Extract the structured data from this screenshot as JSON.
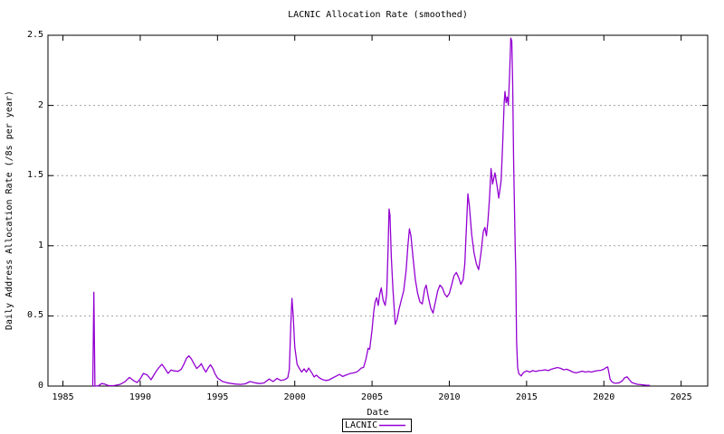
{
  "title": "LACNIC Allocation Rate (smoothed)",
  "axes": {
    "x_label": "Date",
    "y_label": "Daily Address Allocation Rate (/8s per year)",
    "x_tick_labels": [
      "1985",
      "1990",
      "1995",
      "2000",
      "2005",
      "2010",
      "2015",
      "2020",
      "2025"
    ],
    "y_tick_labels": [
      "0",
      "0.5",
      "1",
      "1.5",
      "2",
      "2.5"
    ]
  },
  "legend": {
    "label": "LACNIC"
  },
  "colors": {
    "line": "#9400d3",
    "grid": "#a0a0a0",
    "frame": "#000000",
    "background": "#ffffff"
  },
  "chart_data": {
    "type": "line",
    "title": "LACNIC Allocation Rate (smoothed)",
    "xlabel": "Date",
    "ylabel": "Daily Address Allocation Rate (/8s per year)",
    "xlim": [
      1984.03,
      2026.72
    ],
    "ylim": [
      0,
      2.5
    ],
    "x_ticks": [
      1985,
      1990,
      1995,
      2000,
      2005,
      2010,
      2015,
      2020,
      2025
    ],
    "y_ticks": [
      0,
      0.5,
      1,
      1.5,
      2,
      2.5
    ],
    "grid": "horizontal dashed lines at interior y ticks",
    "legend_position": "below x-axis label, centered, boxed",
    "series": [
      {
        "name": "LACNIC",
        "color": "#9400d3",
        "points": [
          [
            1986.93,
            0
          ],
          [
            1987.0,
            0.668
          ],
          [
            1987.07,
            0
          ],
          [
            1987.3,
            0.002
          ],
          [
            1987.5,
            0.018
          ],
          [
            1987.7,
            0.014
          ],
          [
            1987.95,
            0.003
          ],
          [
            1988.3,
            0.003
          ],
          [
            1988.7,
            0.012
          ],
          [
            1989.0,
            0.03
          ],
          [
            1989.3,
            0.062
          ],
          [
            1989.55,
            0.04
          ],
          [
            1989.8,
            0.025
          ],
          [
            1990.0,
            0.05
          ],
          [
            1990.2,
            0.09
          ],
          [
            1990.45,
            0.08
          ],
          [
            1990.7,
            0.045
          ],
          [
            1991.0,
            0.1
          ],
          [
            1991.2,
            0.13
          ],
          [
            1991.4,
            0.155
          ],
          [
            1991.6,
            0.125
          ],
          [
            1991.8,
            0.09
          ],
          [
            1992.0,
            0.115
          ],
          [
            1992.2,
            0.108
          ],
          [
            1992.45,
            0.105
          ],
          [
            1992.65,
            0.12
          ],
          [
            1992.8,
            0.15
          ],
          [
            1993.0,
            0.2
          ],
          [
            1993.15,
            0.215
          ],
          [
            1993.3,
            0.195
          ],
          [
            1993.5,
            0.155
          ],
          [
            1993.65,
            0.125
          ],
          [
            1993.85,
            0.145
          ],
          [
            1993.95,
            0.16
          ],
          [
            1994.1,
            0.125
          ],
          [
            1994.25,
            0.1
          ],
          [
            1994.4,
            0.13
          ],
          [
            1994.55,
            0.152
          ],
          [
            1994.7,
            0.125
          ],
          [
            1994.85,
            0.085
          ],
          [
            1995.0,
            0.058
          ],
          [
            1995.3,
            0.034
          ],
          [
            1995.6,
            0.024
          ],
          [
            1995.9,
            0.018
          ],
          [
            1996.2,
            0.014
          ],
          [
            1996.5,
            0.012
          ],
          [
            1996.8,
            0.016
          ],
          [
            1997.1,
            0.032
          ],
          [
            1997.4,
            0.024
          ],
          [
            1997.7,
            0.018
          ],
          [
            1998.0,
            0.022
          ],
          [
            1998.35,
            0.05
          ],
          [
            1998.6,
            0.032
          ],
          [
            1998.85,
            0.055
          ],
          [
            1999.1,
            0.04
          ],
          [
            1999.35,
            0.046
          ],
          [
            1999.55,
            0.06
          ],
          [
            1999.65,
            0.12
          ],
          [
            1999.75,
            0.45
          ],
          [
            1999.82,
            0.625
          ],
          [
            1999.9,
            0.5
          ],
          [
            2000.0,
            0.28
          ],
          [
            2000.15,
            0.155
          ],
          [
            2000.3,
            0.125
          ],
          [
            2000.45,
            0.1
          ],
          [
            2000.6,
            0.123
          ],
          [
            2000.75,
            0.1
          ],
          [
            2000.9,
            0.128
          ],
          [
            2001.1,
            0.095
          ],
          [
            2001.25,
            0.065
          ],
          [
            2001.4,
            0.078
          ],
          [
            2001.6,
            0.058
          ],
          [
            2001.8,
            0.046
          ],
          [
            2002.0,
            0.04
          ],
          [
            2002.2,
            0.043
          ],
          [
            2002.45,
            0.058
          ],
          [
            2002.7,
            0.072
          ],
          [
            2002.9,
            0.083
          ],
          [
            2003.1,
            0.068
          ],
          [
            2003.3,
            0.078
          ],
          [
            2003.55,
            0.088
          ],
          [
            2003.8,
            0.094
          ],
          [
            2004.0,
            0.1
          ],
          [
            2004.15,
            0.112
          ],
          [
            2004.3,
            0.128
          ],
          [
            2004.45,
            0.133
          ],
          [
            2004.6,
            0.19
          ],
          [
            2004.75,
            0.27
          ],
          [
            2004.85,
            0.262
          ],
          [
            2005.0,
            0.4
          ],
          [
            2005.1,
            0.52
          ],
          [
            2005.2,
            0.6
          ],
          [
            2005.3,
            0.63
          ],
          [
            2005.4,
            0.575
          ],
          [
            2005.5,
            0.655
          ],
          [
            2005.6,
            0.7
          ],
          [
            2005.72,
            0.61
          ],
          [
            2005.85,
            0.575
          ],
          [
            2005.95,
            0.66
          ],
          [
            2006.03,
            0.95
          ],
          [
            2006.1,
            1.262
          ],
          [
            2006.16,
            1.22
          ],
          [
            2006.25,
            0.92
          ],
          [
            2006.35,
            0.7
          ],
          [
            2006.5,
            0.44
          ],
          [
            2006.62,
            0.475
          ],
          [
            2006.75,
            0.55
          ],
          [
            2006.9,
            0.615
          ],
          [
            2007.05,
            0.68
          ],
          [
            2007.2,
            0.82
          ],
          [
            2007.32,
            1.0
          ],
          [
            2007.42,
            1.12
          ],
          [
            2007.52,
            1.07
          ],
          [
            2007.65,
            0.92
          ],
          [
            2007.8,
            0.76
          ],
          [
            2007.95,
            0.66
          ],
          [
            2008.1,
            0.6
          ],
          [
            2008.25,
            0.585
          ],
          [
            2008.4,
            0.69
          ],
          [
            2008.5,
            0.72
          ],
          [
            2008.65,
            0.63
          ],
          [
            2008.8,
            0.555
          ],
          [
            2008.95,
            0.52
          ],
          [
            2009.1,
            0.6
          ],
          [
            2009.25,
            0.68
          ],
          [
            2009.4,
            0.72
          ],
          [
            2009.55,
            0.7
          ],
          [
            2009.7,
            0.655
          ],
          [
            2009.85,
            0.635
          ],
          [
            2010.0,
            0.66
          ],
          [
            2010.15,
            0.72
          ],
          [
            2010.3,
            0.785
          ],
          [
            2010.45,
            0.81
          ],
          [
            2010.6,
            0.775
          ],
          [
            2010.75,
            0.725
          ],
          [
            2010.9,
            0.76
          ],
          [
            2011.0,
            0.87
          ],
          [
            2011.1,
            1.12
          ],
          [
            2011.2,
            1.37
          ],
          [
            2011.3,
            1.28
          ],
          [
            2011.45,
            1.08
          ],
          [
            2011.6,
            0.95
          ],
          [
            2011.75,
            0.87
          ],
          [
            2011.9,
            0.83
          ],
          [
            2012.05,
            0.95
          ],
          [
            2012.2,
            1.1
          ],
          [
            2012.3,
            1.13
          ],
          [
            2012.4,
            1.07
          ],
          [
            2012.5,
            1.18
          ],
          [
            2012.6,
            1.34
          ],
          [
            2012.7,
            1.55
          ],
          [
            2012.8,
            1.44
          ],
          [
            2012.95,
            1.52
          ],
          [
            2013.1,
            1.42
          ],
          [
            2013.2,
            1.34
          ],
          [
            2013.35,
            1.46
          ],
          [
            2013.45,
            1.72
          ],
          [
            2013.55,
            2.02
          ],
          [
            2013.6,
            2.1
          ],
          [
            2013.68,
            2.02
          ],
          [
            2013.75,
            2.06
          ],
          [
            2013.82,
            2.0
          ],
          [
            2013.9,
            2.22
          ],
          [
            2013.98,
            2.48
          ],
          [
            2014.04,
            2.46
          ],
          [
            2014.1,
            2.15
          ],
          [
            2014.16,
            1.62
          ],
          [
            2014.22,
            1.26
          ],
          [
            2014.27,
            0.95
          ],
          [
            2014.3,
            0.83
          ],
          [
            2014.35,
            0.32
          ],
          [
            2014.42,
            0.13
          ],
          [
            2014.5,
            0.088
          ],
          [
            2014.65,
            0.072
          ],
          [
            2014.8,
            0.096
          ],
          [
            2015.0,
            0.108
          ],
          [
            2015.2,
            0.1
          ],
          [
            2015.4,
            0.11
          ],
          [
            2015.6,
            0.104
          ],
          [
            2015.8,
            0.11
          ],
          [
            2016.0,
            0.112
          ],
          [
            2016.2,
            0.116
          ],
          [
            2016.4,
            0.11
          ],
          [
            2016.6,
            0.12
          ],
          [
            2016.8,
            0.126
          ],
          [
            2017.0,
            0.132
          ],
          [
            2017.2,
            0.126
          ],
          [
            2017.4,
            0.116
          ],
          [
            2017.6,
            0.12
          ],
          [
            2017.8,
            0.11
          ],
          [
            2018.0,
            0.1
          ],
          [
            2018.2,
            0.094
          ],
          [
            2018.4,
            0.1
          ],
          [
            2018.6,
            0.106
          ],
          [
            2018.8,
            0.1
          ],
          [
            2019.0,
            0.104
          ],
          [
            2019.2,
            0.1
          ],
          [
            2019.4,
            0.106
          ],
          [
            2019.6,
            0.11
          ],
          [
            2019.8,
            0.112
          ],
          [
            2020.0,
            0.12
          ],
          [
            2020.15,
            0.132
          ],
          [
            2020.25,
            0.136
          ],
          [
            2020.32,
            0.1
          ],
          [
            2020.4,
            0.05
          ],
          [
            2020.5,
            0.032
          ],
          [
            2020.65,
            0.022
          ],
          [
            2020.8,
            0.02
          ],
          [
            2021.0,
            0.024
          ],
          [
            2021.2,
            0.038
          ],
          [
            2021.35,
            0.06
          ],
          [
            2021.5,
            0.066
          ],
          [
            2021.65,
            0.046
          ],
          [
            2021.8,
            0.026
          ],
          [
            2022.0,
            0.018
          ],
          [
            2022.2,
            0.012
          ],
          [
            2022.4,
            0.01
          ],
          [
            2022.6,
            0.008
          ],
          [
            2022.8,
            0.006
          ],
          [
            2022.95,
            0.005
          ]
        ]
      }
    ]
  }
}
